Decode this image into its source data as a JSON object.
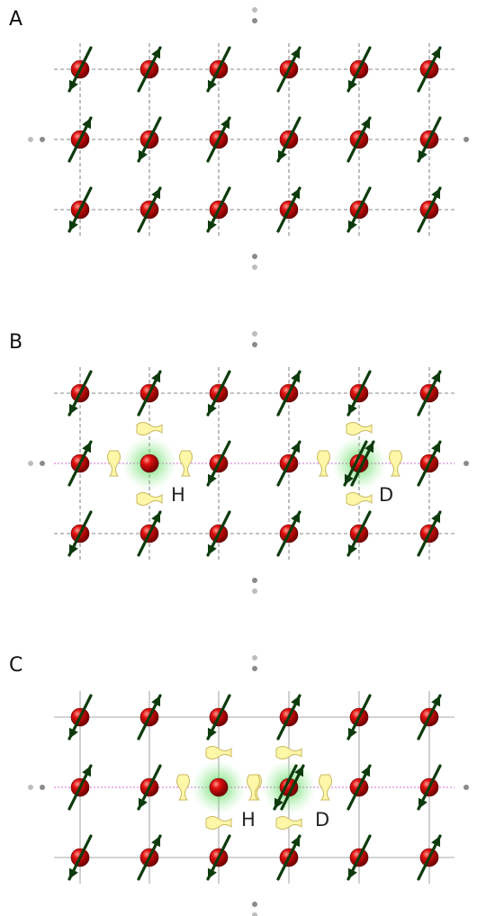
{
  "panels": [
    {
      "label": "A",
      "grid_style": "dashed",
      "columns": 6,
      "rows": 3,
      "spins": [
        [
          "down",
          "up",
          "down",
          "up",
          "down",
          "up"
        ],
        [
          "up",
          "down",
          "up",
          "down",
          "up",
          "down"
        ],
        [
          "down",
          "up",
          "down",
          "up",
          "down",
          "up"
        ]
      ],
      "special_sites": []
    },
    {
      "label": "B",
      "grid_style": "dashed",
      "columns": 6,
      "rows": 3,
      "spins": [
        [
          "down",
          "up",
          "down",
          "up",
          "down",
          "up"
        ],
        [
          "up",
          "none",
          "down",
          "up",
          "pair",
          "up"
        ],
        [
          "down",
          "up",
          "down",
          "up",
          "down",
          "up"
        ]
      ],
      "special_sites": [
        {
          "kind": "holon",
          "label": "H",
          "row": 1,
          "col": 1
        },
        {
          "kind": "doublon",
          "label": "D",
          "row": 1,
          "col": 4
        }
      ]
    },
    {
      "label": "C",
      "grid_style": "solid",
      "columns": 6,
      "rows": 3,
      "spins": [
        [
          "down",
          "up",
          "down",
          "up",
          "down",
          "up"
        ],
        [
          "up",
          "down",
          "none",
          "pair",
          "up",
          "down"
        ],
        [
          "down",
          "up",
          "down",
          "up",
          "down",
          "up"
        ]
      ],
      "special_sites": [
        {
          "kind": "holon",
          "label": "H",
          "row": 1,
          "col": 2
        },
        {
          "kind": "doublon",
          "label": "D",
          "row": 1,
          "col": 3
        }
      ]
    }
  ],
  "colors": {
    "atom": "#d40000",
    "atom_highlight": "#ff8a80",
    "arrow": "#0d3b0d",
    "dashed_grid": "#888888",
    "solid_grid": "#aaaaaa",
    "link": "#d46bd4",
    "glow": "#33cc33",
    "tunnel_marker": "#fff7a8",
    "tunnel_marker_stroke": "#c8b860",
    "dot": "#999999"
  }
}
